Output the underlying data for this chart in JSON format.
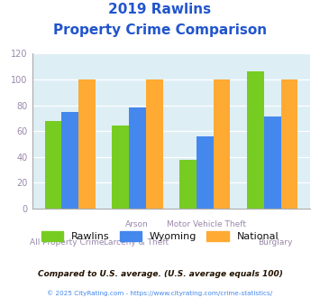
{
  "title_line1": "2019 Rawlins",
  "title_line2": "Property Crime Comparison",
  "cat_labels_top": [
    "",
    "Arson",
    "",
    "Motor Vehicle Theft",
    "",
    ""
  ],
  "cat_labels_bot": [
    "All Property Crime",
    "",
    "Larceny & Theft",
    "",
    "Burglary",
    ""
  ],
  "rawlins_values": [
    68,
    64,
    38,
    106
  ],
  "wyoming_values": [
    75,
    78,
    56,
    71
  ],
  "national_values": [
    100,
    100,
    100,
    100
  ],
  "rawlins_color": "#77cc22",
  "wyoming_color": "#4488ee",
  "national_color": "#ffaa33",
  "ylim": [
    0,
    120
  ],
  "yticks": [
    0,
    20,
    40,
    60,
    80,
    100,
    120
  ],
  "plot_bg_color": "#ddeef5",
  "title_color": "#2255cc",
  "axis_label_color": "#9988aa",
  "legend_label_color": "#111111",
  "legend_labels": [
    "Rawlins",
    "Wyoming",
    "National"
  ],
  "footer_text": "Compared to U.S. average. (U.S. average equals 100)",
  "footer2_text": "© 2025 CityRating.com - https://www.cityrating.com/crime-statistics/",
  "footer_color": "#221100",
  "footer2_color": "#4488ee",
  "title_fontsize": 11,
  "bar_width": 0.25
}
